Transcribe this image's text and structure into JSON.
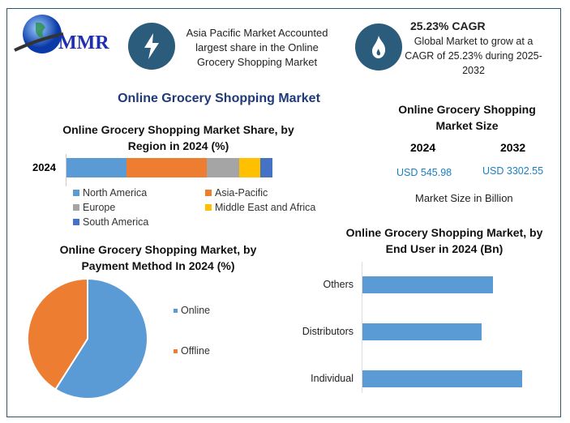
{
  "logo": {
    "text": "MMR"
  },
  "header": {
    "highlight_text": "Asia Pacific Market Accounted largest share in the Online Grocery Shopping Market",
    "cagr_title": "25.23% CAGR",
    "cagr_text": "Global Market to grow at a CAGR of 25.23% during 2025-2032"
  },
  "main_title": "Online Grocery Shopping Market",
  "market_size": {
    "title": "Online Grocery Shopping Market Size",
    "year1": "2024",
    "year2": "2032",
    "value1": "USD 545.98",
    "value2": "USD 3302.55",
    "unit_note": "Market Size in Billion"
  },
  "colors": {
    "north_america": "#5b9bd5",
    "asia_pacific": "#ed7d31",
    "europe": "#a5a5a5",
    "mea": "#ffc000",
    "south_america": "#4472c4",
    "frame": "#2f5668",
    "icon_bg": "#2c5c7c",
    "value_text": "#1a7fc1"
  },
  "chart_data": [
    {
      "type": "bar",
      "orientation": "horizontal",
      "stacked": true,
      "title": "Online Grocery Shopping Market Share, by Region in 2024 (%)",
      "categories": [
        "2024"
      ],
      "series": [
        {
          "name": "North America",
          "values": [
            29
          ]
        },
        {
          "name": "Asia-Pacific",
          "values": [
            39
          ]
        },
        {
          "name": "Europe",
          "values": [
            16
          ]
        },
        {
          "name": "Middle East and Africa",
          "values": [
            10
          ]
        },
        {
          "name": "South America",
          "values": [
            6
          ]
        }
      ],
      "legend": "bottom",
      "grid": false
    },
    {
      "type": "pie",
      "title": "Online Grocery Shopping Market, by Payment Method In 2024 (%)",
      "categories": [
        "Online",
        "Offline"
      ],
      "values": [
        59,
        41
      ],
      "legend": "right"
    },
    {
      "type": "bar",
      "orientation": "horizontal",
      "title": "Online Grocery Shopping Market, by End User in 2024 (Bn)",
      "categories": [
        "Others",
        "Distributors",
        "Individual"
      ],
      "values": [
        163,
        149,
        200
      ],
      "grid": false
    }
  ]
}
